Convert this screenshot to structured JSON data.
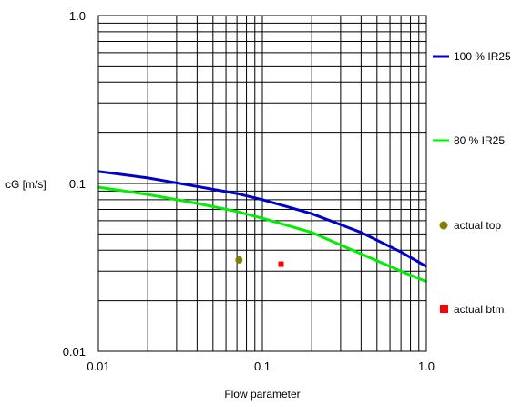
{
  "chart_data": {
    "type": "line",
    "xlabel": "Flow parameter",
    "ylabel": "cG [m/s]",
    "xscale": "log",
    "yscale": "log",
    "xlim": [
      0.01,
      1.0
    ],
    "ylim": [
      0.01,
      1.0
    ],
    "x_tick_labels": [
      "0.01",
      "0.1",
      "1.0"
    ],
    "y_tick_labels": [
      "0.01",
      "0.1",
      "1.0"
    ],
    "grid": true,
    "legend_position": "right",
    "series": [
      {
        "name": "100 % IR25",
        "kind": "line",
        "color": "#0000cc",
        "x": [
          0.01,
          0.02,
          0.04,
          0.07,
          0.1,
          0.2,
          0.4,
          0.7,
          1.0
        ],
        "y": [
          0.118,
          0.108,
          0.096,
          0.087,
          0.08,
          0.066,
          0.051,
          0.039,
          0.032
        ]
      },
      {
        "name": "80 % IR25",
        "kind": "line",
        "color": "#00ee00",
        "x": [
          0.01,
          0.02,
          0.04,
          0.07,
          0.1,
          0.2,
          0.4,
          0.7,
          1.0
        ],
        "y": [
          0.095,
          0.086,
          0.076,
          0.068,
          0.062,
          0.051,
          0.038,
          0.03,
          0.026
        ]
      },
      {
        "name": "actual top",
        "kind": "point",
        "marker": "circle",
        "color": "#808000",
        "x": [
          0.072
        ],
        "y": [
          0.035
        ]
      },
      {
        "name": "actual btm",
        "kind": "point",
        "marker": "square",
        "color": "#ff0000",
        "x": [
          0.13
        ],
        "y": [
          0.033
        ]
      }
    ]
  }
}
